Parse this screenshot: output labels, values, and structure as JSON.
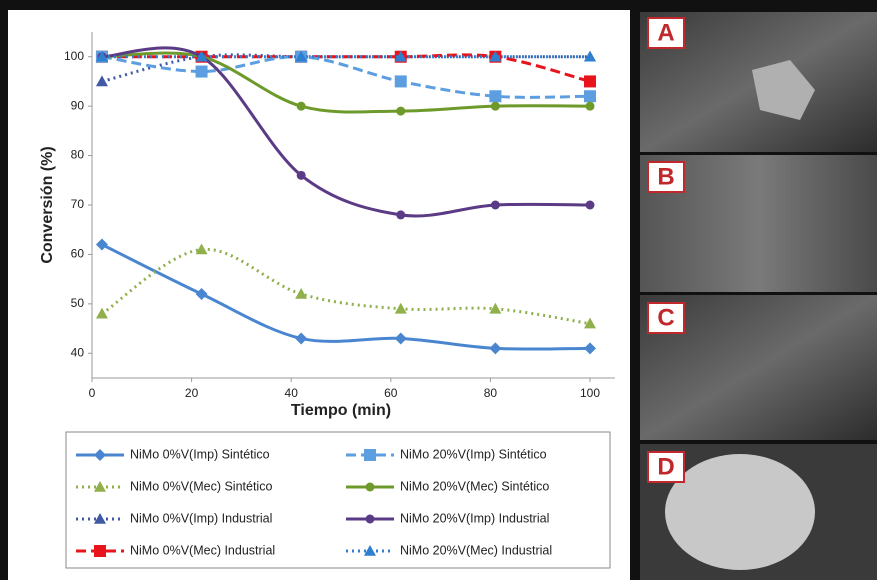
{
  "chart_data": {
    "type": "line",
    "x_label": "Tiempo (min)",
    "y_label": "Conversión (%)",
    "x": [
      2,
      22,
      42,
      62,
      81,
      100
    ],
    "xlim": [
      0,
      105
    ],
    "xticks": [
      0,
      20,
      40,
      60,
      80,
      100
    ],
    "ylim": [
      35,
      105
    ],
    "yticks": [
      40,
      50,
      60,
      70,
      80,
      90,
      100
    ],
    "grid": false,
    "series": [
      {
        "name": "NiMo 0%V(Imp)  Sintético",
        "color": "#4a86d0",
        "dash": "solid",
        "marker": "diamond",
        "values": [
          62,
          52,
          43,
          43,
          41,
          41
        ]
      },
      {
        "name": "NiMo 0%V(Mec) Sintético",
        "color": "#8fb04a",
        "dash": "dot",
        "marker": "triangle",
        "values": [
          48,
          61,
          52,
          49,
          49,
          46
        ]
      },
      {
        "name": "NiMo 0%V(Imp)  Industrial",
        "color": "#3f59a6",
        "dash": "dot",
        "marker": "triangle",
        "values": [
          95,
          100,
          100,
          100,
          100,
          100
        ]
      },
      {
        "name": "NiMo 0%V(Mec) Industrial",
        "color": "#e8141c",
        "dash": "dash",
        "marker": "square",
        "values": [
          100,
          100,
          100,
          100,
          100,
          95
        ]
      },
      {
        "name": "NiMo 20%V(Imp)  Sintético",
        "color": "#5c9ee0",
        "dash": "dash",
        "marker": "square",
        "values": [
          100,
          97,
          100,
          95,
          92,
          92
        ]
      },
      {
        "name": "NiMo 20%V(Mec) Sintético",
        "color": "#6e9a2c",
        "dash": "solid",
        "marker": "circle",
        "values": [
          100,
          100,
          90,
          89,
          90,
          90
        ]
      },
      {
        "name": "NiMo 20%V(Imp)  Industrial",
        "color": "#5b3a86",
        "dash": "solid",
        "marker": "circle",
        "values": [
          100,
          100,
          76,
          68,
          70,
          70
        ]
      },
      {
        "name": "NiMo 20%V(Mec) Industrial",
        "color": "#2f7fd0",
        "dash": "dot",
        "marker": "triangle",
        "values": [
          100,
          100,
          100,
          100,
          100,
          100
        ]
      }
    ]
  },
  "panels": [
    {
      "label": "A"
    },
    {
      "label": "B"
    },
    {
      "label": "C"
    },
    {
      "label": "D"
    }
  ]
}
